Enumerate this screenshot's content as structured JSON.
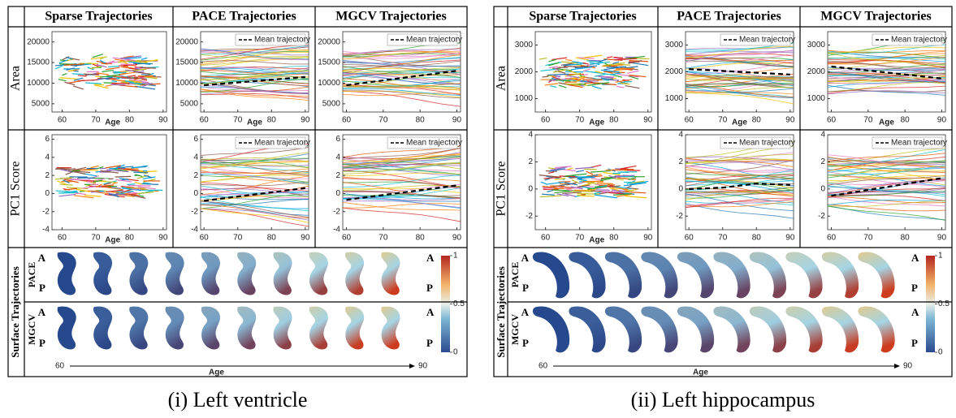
{
  "panels": [
    {
      "columns": [
        "Sparse Trajectories",
        "PACE Trajectories",
        "MGCV Trajectories"
      ],
      "rows": [
        {
          "label": "Area",
          "plots": [
            {
              "xlim": [
                57,
                91
              ],
              "xticks": [
                60,
                70,
                80,
                90
              ],
              "ylim": [
                3000,
                22500
              ],
              "yticks": [
                5000,
                10000,
                15000,
                20000
              ],
              "xlabel": "Age"
            },
            {
              "xlim": [
                59,
                91
              ],
              "xticks": [
                60,
                70,
                80,
                90
              ],
              "ylim": [
                3000,
                22500
              ],
              "yticks": [
                5000,
                10000,
                15000,
                20000
              ],
              "xlabel": "Age",
              "legend": "Mean trajectory",
              "mean": {
                "x": [
                  60,
                  90
                ],
                "values": [
                  9500,
                  11500
                ]
              }
            },
            {
              "xlim": [
                59,
                91
              ],
              "xticks": [
                60,
                70,
                80,
                90
              ],
              "ylim": [
                3000,
                22500
              ],
              "yticks": [
                5000,
                10000,
                15000,
                20000
              ],
              "legend": "Mean trajectory",
              "mean": {
                "x": [
                  60,
                  90
                ],
                "values": [
                  9500,
                  13000
                ]
              }
            }
          ]
        },
        {
          "label": "PC1 Score",
          "plots": [
            {
              "xlim": [
                57,
                91
              ],
              "xticks": [
                60,
                70,
                80,
                90
              ],
              "ylim": [
                -4,
                6.5
              ],
              "yticks": [
                -4,
                -2,
                0,
                2,
                4,
                6
              ],
              "xlabel": "Age"
            },
            {
              "xlim": [
                59,
                91
              ],
              "xticks": [
                60,
                70,
                80,
                90
              ],
              "ylim": [
                -4,
                6.5
              ],
              "yticks": [
                -4,
                -2,
                0,
                2,
                4,
                6
              ],
              "legend": "Mean trajectory",
              "mean": {
                "x": [
                  60,
                  90
                ],
                "values": [
                  -0.8,
                  0.6
                ]
              }
            },
            {
              "xlim": [
                59,
                91
              ],
              "xticks": [
                60,
                70,
                80,
                90
              ],
              "ylim": [
                -4,
                6.5
              ],
              "yticks": [
                -4,
                -2,
                0,
                2,
                4,
                6
              ],
              "legend": "Mean trajectory",
              "mean": {
                "x": [
                  60,
                  90
                ],
                "values": [
                  -0.7,
                  0.9
                ]
              }
            }
          ]
        }
      ],
      "surface": {
        "label": "Surface Trajectories",
        "rows": [
          "PACE",
          "MGCV"
        ],
        "markers": [
          "A",
          "P"
        ],
        "colorbar_ticks": [
          1,
          0.5,
          0
        ],
        "axis_label": "Age",
        "start": 60,
        "end": 90
      },
      "caption": "(i) Left ventricle"
    },
    {
      "columns": [
        "Sparse Trajectories",
        "PACE Trajectories",
        "MGCV Trajectories"
      ],
      "rows": [
        {
          "label": "Area",
          "plots": [
            {
              "xlim": [
                57,
                91
              ],
              "xticks": [
                60,
                70,
                80,
                90
              ],
              "ylim": [
                500,
                3500
              ],
              "yticks": [
                1000,
                2000,
                3000
              ],
              "xlabel": "Age"
            },
            {
              "xlim": [
                59,
                91
              ],
              "xticks": [
                60,
                70,
                80,
                90
              ],
              "ylim": [
                500,
                3500
              ],
              "yticks": [
                1000,
                2000,
                3000
              ],
              "xlabel": "Age",
              "legend": "Mean trajectory",
              "mean": {
                "x": [
                  60,
                  90
                ],
                "values": [
                  2100,
                  1900
                ]
              }
            },
            {
              "xlim": [
                59,
                91
              ],
              "xticks": [
                60,
                70,
                80,
                90
              ],
              "ylim": [
                500,
                3500
              ],
              "yticks": [
                1000,
                2000,
                3000
              ],
              "xlabel": "Age",
              "legend": "Mean trajectory",
              "mean": {
                "x": [
                  60,
                  90
                ],
                "values": [
                  2200,
                  1750
                ]
              }
            }
          ]
        },
        {
          "label": "PC1 Score",
          "plots": [
            {
              "xlim": [
                57,
                91
              ],
              "xticks": [
                60,
                70,
                80,
                90
              ],
              "ylim": [
                -3,
                4
              ],
              "yticks": [
                -2,
                0,
                2,
                4
              ],
              "xlabel": "Age"
            },
            {
              "xlim": [
                59,
                91
              ],
              "xticks": [
                60,
                70,
                80,
                90
              ],
              "ylim": [
                -3,
                4
              ],
              "yticks": [
                -2,
                0,
                2,
                4
              ],
              "legend": "Mean trajectory",
              "mean": {
                "x": [
                  60,
                  70,
                  80,
                  90
                ],
                "values": [
                  0,
                  0.1,
                  0.4,
                  0.3
                ]
              }
            },
            {
              "xlim": [
                59,
                91
              ],
              "xticks": [
                60,
                70,
                80,
                90
              ],
              "ylim": [
                -3,
                4
              ],
              "yticks": [
                -2,
                0,
                2,
                4
              ],
              "legend": "Mean trajectory",
              "mean": {
                "x": [
                  60,
                  90
                ],
                "values": [
                  -0.5,
                  0.8
                ]
              }
            }
          ]
        }
      ],
      "surface": {
        "label": "Surface Trajectories",
        "rows": [
          "PACE",
          "MGCV"
        ],
        "markers": [
          "A",
          "P"
        ],
        "colorbar_ticks": [
          1,
          0.5,
          0
        ],
        "axis_label": "Age",
        "start": 60,
        "end": 90
      },
      "caption": "(ii) Left hippocampus"
    }
  ]
}
